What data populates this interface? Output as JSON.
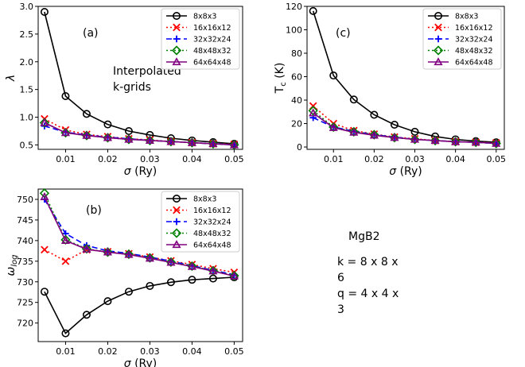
{
  "figure": {
    "system_label": "MgB2",
    "k_grid_text": "k = 8 x 8 x 6",
    "q_grid_text": "q = 4 x 4 x 3"
  },
  "styles": {
    "8x8x3": {
      "color": "#000000",
      "marker": "circle",
      "dash": ""
    },
    "16x16x12": {
      "color": "#ff0000",
      "marker": "x",
      "dash": "2,3"
    },
    "32x32x24": {
      "color": "#0000ff",
      "marker": "plus",
      "dash": "7,4"
    },
    "48x48x32": {
      "color": "#008000",
      "marker": "diamond",
      "dash": "2,3"
    },
    "64x64x48": {
      "color": "#800080",
      "marker": "triangle",
      "dash": ""
    }
  },
  "chart_data": [
    {
      "id": "a",
      "type": "line",
      "panel_label": "(a)",
      "annotation": [
        "Interpolated",
        "k-grids"
      ],
      "xlabel": "σ (Ry)",
      "ylabel": "λ",
      "xlim": [
        0.0035,
        0.052
      ],
      "ylim": [
        0.42,
        3.0
      ],
      "xticks": [
        0.01,
        0.02,
        0.03,
        0.04,
        0.05
      ],
      "xtick_labels": [
        "0.01",
        "0.02",
        "0.03",
        "0.04",
        "0.05"
      ],
      "yticks": [
        0.5,
        1.0,
        1.5,
        2.0,
        2.5,
        3.0
      ],
      "ytick_labels": [
        "0.5",
        "1.0",
        "1.5",
        "2.0",
        "2.5",
        "3.0"
      ],
      "x": [
        0.005,
        0.01,
        0.015,
        0.02,
        0.025,
        0.03,
        0.035,
        0.04,
        0.045,
        0.05
      ],
      "series": [
        {
          "name": "8x8x3",
          "values": [
            2.9,
            1.38,
            1.06,
            0.87,
            0.75,
            0.68,
            0.62,
            0.58,
            0.55,
            0.52
          ]
        },
        {
          "name": "16x16x12",
          "values": [
            0.97,
            0.77,
            0.69,
            0.65,
            0.61,
            0.59,
            0.56,
            0.54,
            0.52,
            0.51
          ]
        },
        {
          "name": "32x32x24",
          "values": [
            0.84,
            0.73,
            0.68,
            0.64,
            0.61,
            0.58,
            0.56,
            0.54,
            0.52,
            0.5
          ]
        },
        {
          "name": "48x48x32",
          "values": [
            0.9,
            0.72,
            0.67,
            0.63,
            0.6,
            0.58,
            0.56,
            0.54,
            0.52,
            0.5
          ]
        },
        {
          "name": "64x64x48",
          "values": [
            0.9,
            0.72,
            0.67,
            0.63,
            0.6,
            0.58,
            0.56,
            0.54,
            0.52,
            0.5
          ]
        }
      ]
    },
    {
      "id": "c",
      "type": "line",
      "panel_label": "(c)",
      "xlabel": "σ (Ry)",
      "ylabel": "Tc (K)",
      "xlim": [
        0.0035,
        0.052
      ],
      "ylim": [
        -2,
        120
      ],
      "xticks": [
        0.01,
        0.02,
        0.03,
        0.04,
        0.05
      ],
      "xtick_labels": [
        "0.01",
        "0.02",
        "0.03",
        "0.04",
        "0.05"
      ],
      "yticks": [
        0,
        20,
        40,
        60,
        80,
        100,
        120
      ],
      "ytick_labels": [
        "0",
        "20",
        "40",
        "60",
        "80",
        "100",
        "120"
      ],
      "x": [
        0.005,
        0.01,
        0.015,
        0.02,
        0.025,
        0.03,
        0.035,
        0.04,
        0.045,
        0.05
      ],
      "series": [
        {
          "name": "8x8x3",
          "values": [
            116,
            61,
            40.5,
            27.5,
            19,
            13,
            9,
            6.5,
            5,
            4
          ]
        },
        {
          "name": "16x16x12",
          "values": [
            35,
            20,
            14,
            11,
            8.5,
            7,
            5.5,
            4.5,
            4,
            3.5
          ]
        },
        {
          "name": "32x32x24",
          "values": [
            25,
            17,
            13.5,
            10.5,
            8.5,
            6.5,
            5.5,
            4.5,
            4,
            3
          ]
        },
        {
          "name": "48x48x32",
          "values": [
            31,
            17,
            13,
            10.5,
            8,
            6.5,
            5.5,
            4.5,
            4,
            3
          ]
        },
        {
          "name": "64x64x48",
          "values": [
            29,
            16.5,
            12.5,
            10,
            8,
            6.5,
            5.5,
            4.5,
            4,
            3
          ]
        }
      ]
    },
    {
      "id": "b",
      "type": "line",
      "panel_label": "(b)",
      "xlabel": "σ (Ry)",
      "ylabel": "ω log",
      "xlim": [
        0.0035,
        0.052
      ],
      "ylim": [
        715.5,
        752.5
      ],
      "xticks": [
        0.01,
        0.02,
        0.03,
        0.04,
        0.05
      ],
      "xtick_labels": [
        "0.01",
        "0.02",
        "0.03",
        "0.04",
        "0.05"
      ],
      "yticks": [
        720,
        725,
        730,
        735,
        740,
        745,
        750
      ],
      "ytick_labels": [
        "720",
        "725",
        "730",
        "735",
        "740",
        "745",
        "750"
      ],
      "x": [
        0.005,
        0.01,
        0.015,
        0.02,
        0.025,
        0.03,
        0.035,
        0.04,
        0.045,
        0.05
      ],
      "series": [
        {
          "name": "8x8x3",
          "values": [
            727.6,
            717.5,
            722.0,
            725.3,
            727.6,
            729.0,
            729.9,
            730.5,
            730.8,
            731.1
          ]
        },
        {
          "name": "16x16x12",
          "values": [
            737.8,
            735.0,
            737.8,
            737.3,
            736.8,
            736.0,
            735.1,
            734.2,
            733.2,
            732.3
          ]
        },
        {
          "name": "32x32x24",
          "values": [
            750.0,
            741.7,
            738.8,
            737.5,
            736.9,
            736.0,
            735.0,
            733.9,
            732.8,
            731.7
          ]
        },
        {
          "name": "48x48x32",
          "values": [
            751.5,
            740.2,
            738.0,
            737.2,
            736.7,
            735.8,
            734.8,
            733.8,
            732.7,
            731.5
          ]
        },
        {
          "name": "64x64x48",
          "values": [
            750.6,
            740.0,
            737.9,
            737.2,
            736.6,
            735.7,
            734.7,
            733.7,
            732.6,
            731.4
          ]
        }
      ]
    }
  ]
}
